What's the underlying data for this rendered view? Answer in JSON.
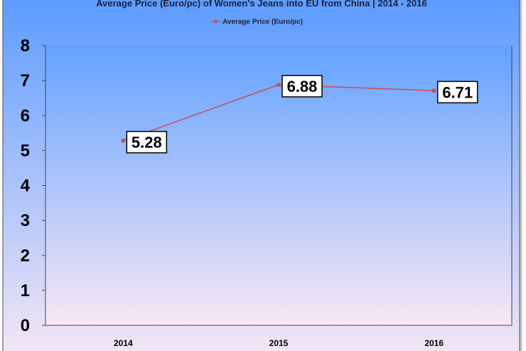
{
  "chart_data": {
    "type": "line",
    "title": "Average Price (Euro/pc) of Women's Jeans into EU from China | 2014 - 2016",
    "categories": [
      "2014",
      "2015",
      "2016"
    ],
    "series": [
      {
        "name": "Average Price (Euro/pc)",
        "values": [
          5.28,
          6.88,
          6.71
        ],
        "color": "#c0504d"
      }
    ],
    "data_labels": [
      "5.28",
      "6.88",
      "6.71"
    ],
    "ylim": [
      0,
      8
    ],
    "yticks": [
      "0",
      "1",
      "2",
      "3",
      "4",
      "5",
      "6",
      "7",
      "8"
    ],
    "xlabel": "",
    "ylabel": "",
    "legend_position": "top-center",
    "grid": false
  },
  "colors": {
    "outer_top": "#5b9bff",
    "outer_bottom": "#f3e6f5",
    "plot_top": "#62a2ff",
    "plot_bottom": "#fae7f5",
    "line": "#c0504d",
    "border": "#444444"
  }
}
